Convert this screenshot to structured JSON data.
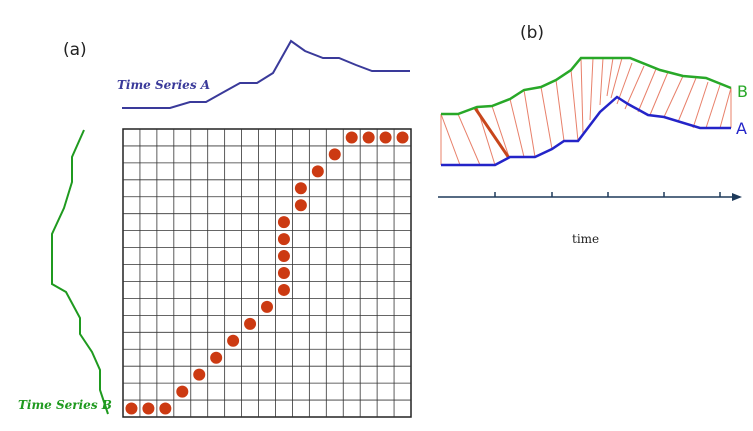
{
  "panel_a": {
    "label": "(a)",
    "series_a_label": "Time Series A",
    "series_b_label": "Time Series B",
    "grid_rows": 17,
    "grid_cols": 17,
    "series_a_color": "#3a3a9a",
    "series_b_color": "#1f9a1f",
    "path_color": "#cc3a12",
    "warping_path": [
      [
        0,
        16
      ],
      [
        1,
        16
      ],
      [
        2,
        16
      ],
      [
        3,
        15
      ],
      [
        4,
        14
      ],
      [
        5,
        13
      ],
      [
        6,
        12
      ],
      [
        7,
        11
      ],
      [
        8,
        10
      ],
      [
        9,
        9
      ],
      [
        9,
        8
      ],
      [
        9,
        7
      ],
      [
        9,
        6
      ],
      [
        9,
        5
      ],
      [
        10,
        4
      ],
      [
        10,
        3
      ],
      [
        11,
        2
      ],
      [
        12,
        1
      ],
      [
        13,
        0
      ],
      [
        14,
        0
      ],
      [
        15,
        0
      ],
      [
        16,
        0
      ]
    ]
  },
  "panel_b": {
    "label": "(b)",
    "series_b_letter": "B",
    "series_a_letter": "A",
    "axis_label": "time",
    "series_b_color": "#28a828",
    "series_a_color": "#2424c8",
    "connector_color": "#e8806a",
    "highlight_color": "#c8461c"
  }
}
